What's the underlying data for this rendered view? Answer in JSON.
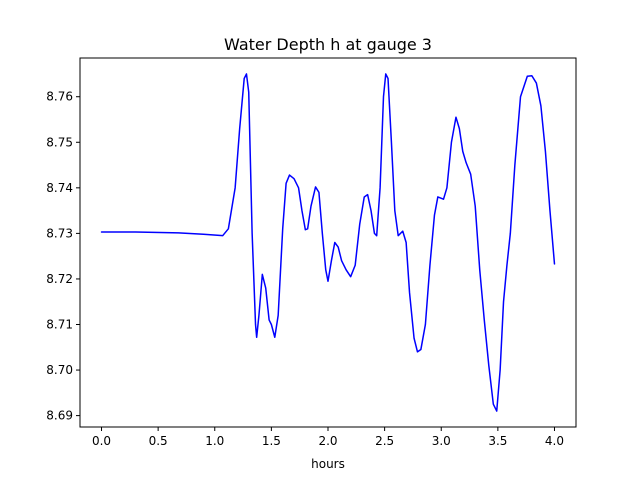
{
  "chart_data": {
    "type": "line",
    "title": "Water Depth h at gauge 3",
    "xlabel": "hours",
    "ylabel": "",
    "xlim": [
      -0.19,
      4.19
    ],
    "ylim": [
      8.6875,
      8.7685
    ],
    "xticks": [
      0.0,
      0.5,
      1.0,
      1.5,
      2.0,
      2.5,
      3.0,
      3.5,
      4.0
    ],
    "xtick_labels": [
      "0.0",
      "0.5",
      "1.0",
      "1.5",
      "2.0",
      "2.5",
      "3.0",
      "3.5",
      "4.0"
    ],
    "yticks": [
      8.69,
      8.7,
      8.71,
      8.72,
      8.73,
      8.74,
      8.75,
      8.76
    ],
    "ytick_labels": [
      "8.69",
      "8.70",
      "8.71",
      "8.72",
      "8.73",
      "8.74",
      "8.75",
      "8.76"
    ],
    "grid": false,
    "legend": "none",
    "series": [
      {
        "color": "#0000ff",
        "points": [
          [
            0.0,
            8.7303
          ],
          [
            0.3,
            8.7303
          ],
          [
            0.68,
            8.7301
          ],
          [
            0.9,
            8.7298
          ],
          [
            1.07,
            8.7295
          ],
          [
            1.12,
            8.731
          ],
          [
            1.18,
            8.74
          ],
          [
            1.22,
            8.753
          ],
          [
            1.26,
            8.764
          ],
          [
            1.28,
            8.765
          ],
          [
            1.3,
            8.761
          ],
          [
            1.33,
            8.73
          ],
          [
            1.36,
            8.71
          ],
          [
            1.37,
            8.7072
          ],
          [
            1.39,
            8.712
          ],
          [
            1.42,
            8.721
          ],
          [
            1.45,
            8.718
          ],
          [
            1.48,
            8.711
          ],
          [
            1.5,
            8.71
          ],
          [
            1.53,
            8.7072
          ],
          [
            1.56,
            8.712
          ],
          [
            1.6,
            8.731
          ],
          [
            1.63,
            8.741
          ],
          [
            1.66,
            8.7428
          ],
          [
            1.7,
            8.742
          ],
          [
            1.74,
            8.74
          ],
          [
            1.77,
            8.735
          ],
          [
            1.8,
            8.7308
          ],
          [
            1.82,
            8.731
          ],
          [
            1.85,
            8.736
          ],
          [
            1.89,
            8.7402
          ],
          [
            1.92,
            8.739
          ],
          [
            1.95,
            8.73
          ],
          [
            1.98,
            8.722
          ],
          [
            2.0,
            8.7195
          ],
          [
            2.03,
            8.724
          ],
          [
            2.06,
            8.728
          ],
          [
            2.09,
            8.727
          ],
          [
            2.12,
            8.724
          ],
          [
            2.16,
            8.722
          ],
          [
            2.2,
            8.7205
          ],
          [
            2.24,
            8.723
          ],
          [
            2.28,
            8.732
          ],
          [
            2.32,
            8.738
          ],
          [
            2.35,
            8.7385
          ],
          [
            2.38,
            8.735
          ],
          [
            2.41,
            8.73
          ],
          [
            2.43,
            8.7295
          ],
          [
            2.46,
            8.74
          ],
          [
            2.49,
            8.76
          ],
          [
            2.51,
            8.765
          ],
          [
            2.53,
            8.764
          ],
          [
            2.56,
            8.75
          ],
          [
            2.59,
            8.735
          ],
          [
            2.62,
            8.7295
          ],
          [
            2.66,
            8.7305
          ],
          [
            2.69,
            8.728
          ],
          [
            2.72,
            8.717
          ],
          [
            2.76,
            8.707
          ],
          [
            2.79,
            8.704
          ],
          [
            2.82,
            8.7045
          ],
          [
            2.86,
            8.71
          ],
          [
            2.9,
            8.723
          ],
          [
            2.94,
            8.734
          ],
          [
            2.97,
            8.738
          ],
          [
            3.02,
            8.7375
          ],
          [
            3.05,
            8.74
          ],
          [
            3.09,
            8.75
          ],
          [
            3.13,
            8.7555
          ],
          [
            3.16,
            8.753
          ],
          [
            3.19,
            8.748
          ],
          [
            3.22,
            8.7455
          ],
          [
            3.26,
            8.743
          ],
          [
            3.3,
            8.736
          ],
          [
            3.34,
            8.722
          ],
          [
            3.38,
            8.711
          ],
          [
            3.42,
            8.701
          ],
          [
            3.46,
            8.6925
          ],
          [
            3.49,
            8.691
          ],
          [
            3.52,
            8.7
          ],
          [
            3.55,
            8.715
          ],
          [
            3.58,
            8.723
          ],
          [
            3.61,
            8.73
          ],
          [
            3.65,
            8.745
          ],
          [
            3.7,
            8.76
          ],
          [
            3.76,
            8.7645
          ],
          [
            3.8,
            8.7646
          ],
          [
            3.84,
            8.763
          ],
          [
            3.88,
            8.758
          ],
          [
            3.92,
            8.748
          ],
          [
            3.96,
            8.735
          ],
          [
            4.0,
            8.7233
          ]
        ]
      }
    ]
  }
}
